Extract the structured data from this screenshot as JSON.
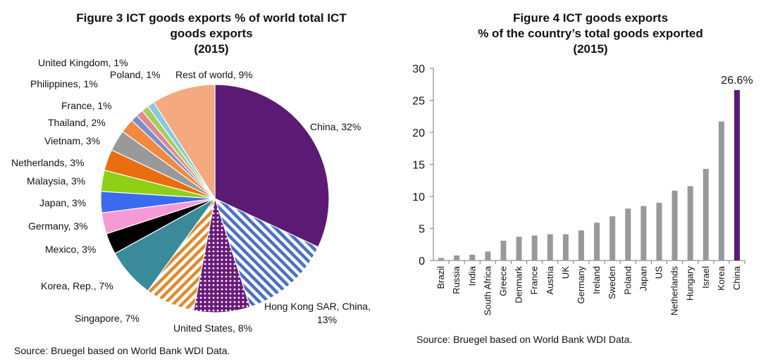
{
  "charts": [
    {
      "title_lines": [
        "Figure 3 ICT goods exports % of world total ICT",
        "goods exports",
        "(2015)"
      ],
      "source": "Source: Bruegel based on World Bank WDI Data."
    },
    {
      "title_lines": [
        "Figure 4 ICT goods exports",
        "% of the country’s total goods exported",
        "(2015)"
      ],
      "source": "Source: Bruegel based on World Bank WDI Data."
    }
  ],
  "chart_data": [
    {
      "type": "pie",
      "slices": [
        {
          "name": "China",
          "value": 32,
          "label": "China, 32%",
          "color": "#5b1a74",
          "pattern": "solid"
        },
        {
          "name": "Hong Kong SAR, China",
          "value": 13,
          "label_lines": [
            "Hong Kong SAR, China,",
            "13%"
          ],
          "color": "#4a70c4",
          "pattern": "stripes"
        },
        {
          "name": "United States",
          "value": 8,
          "label": "United States, 8%",
          "color": "#6a1b7a",
          "pattern": "dots"
        },
        {
          "name": "Singapore",
          "value": 7,
          "label": "Singapore, 7%",
          "color": "#e08a2c",
          "pattern": "stripes"
        },
        {
          "name": "Korea, Rep.",
          "value": 7,
          "label": "Korea, Rep., 7%",
          "color": "#3a8a9a",
          "pattern": "solid"
        },
        {
          "name": "Mexico",
          "value": 3,
          "label": "Mexico, 3%",
          "color": "#000000",
          "pattern": "solid"
        },
        {
          "name": "Germany",
          "value": 3,
          "label": "Germany, 3%",
          "color": "#f59ad6",
          "pattern": "solid"
        },
        {
          "name": "Japan",
          "value": 3,
          "label": "Japan, 3%",
          "color": "#3a6af0",
          "pattern": "solid"
        },
        {
          "name": "Malaysia",
          "value": 3,
          "label": "Malaysia, 3%",
          "color": "#8fd016",
          "pattern": "solid"
        },
        {
          "name": "Netherlands",
          "value": 3,
          "label": "Netherlands, 3%",
          "color": "#e86e10",
          "pattern": "solid"
        },
        {
          "name": "Vietnam",
          "value": 3,
          "label": "Vietnam, 3%",
          "color": "#999999",
          "pattern": "solid"
        },
        {
          "name": "Thailand",
          "value": 2,
          "label": "Thailand, 2%",
          "color": "#f08a40",
          "pattern": "solid"
        },
        {
          "name": "France",
          "value": 1,
          "label": "France, 1%",
          "color": "#7a8fc8",
          "pattern": "solid"
        },
        {
          "name": "Philippines",
          "value": 1,
          "label": "Philippines, 1%",
          "color": "#e08890",
          "pattern": "solid"
        },
        {
          "name": "United Kingdom",
          "value": 1,
          "label": "United Kingdom, 1%",
          "color": "#a8cc60",
          "pattern": "solid"
        },
        {
          "name": "Poland",
          "value": 1,
          "label": "Poland, 1%",
          "color": "#88c8e0",
          "pattern": "solid"
        },
        {
          "name": "Rest of world",
          "value": 9,
          "label": "Rest of world, 9%",
          "color": "#f4a97e",
          "pattern": "solid"
        }
      ]
    },
    {
      "type": "bar",
      "categories": [
        "Brazil",
        "Russia",
        "India",
        "South Africa",
        "Greece",
        "Denmark",
        "France",
        "Austria",
        "UK",
        "Germany",
        "Ireland",
        "Sweden",
        "Poland",
        "Japan",
        "US",
        "Netherlands",
        "Hungary",
        "Israel",
        "Korea",
        "China"
      ],
      "values": [
        0.4,
        0.8,
        0.9,
        1.4,
        3.1,
        3.7,
        3.9,
        4.1,
        4.1,
        4.7,
        5.9,
        6.9,
        8.1,
        8.5,
        9.0,
        10.9,
        11.6,
        14.3,
        21.7,
        26.6
      ],
      "ylim": [
        0,
        30
      ],
      "yticks": [
        0,
        5,
        10,
        15,
        20,
        25,
        30
      ],
      "bar_color": "#999999",
      "highlight": {
        "category": "China",
        "color": "#5b1a74",
        "label": "26.6%"
      }
    }
  ]
}
